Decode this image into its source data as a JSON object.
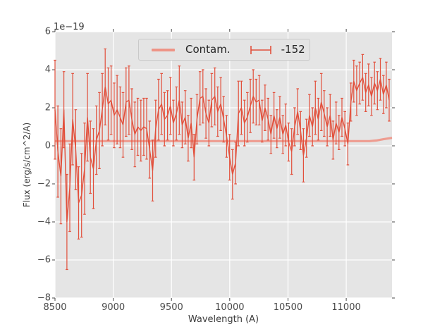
{
  "figure": {
    "background": "#ffffff",
    "plot_background": "#e5e5e5",
    "grid_color": "#ffffff",
    "tick_color": "#4a4a4a",
    "text_color": "#3c3c3c",
    "series_color": "#e2503c",
    "contam_color": "#ee9486",
    "legend_background": "#e4e4e4",
    "legend_border": "#c9c9c9"
  },
  "axes": {
    "xlabel": "Wavelength (A)",
    "ylabel": "Flux (erg/s/cm^2/A)",
    "offset_text": "1e−19",
    "xticks": [
      8500,
      9000,
      9500,
      10000,
      10500,
      11000
    ],
    "xtick_labels": [
      "8500",
      "9000",
      "9500",
      "10000",
      "10500",
      "11000"
    ],
    "yticks": [
      -8,
      -6,
      -4,
      -2,
      0,
      2,
      4,
      6
    ],
    "ytick_labels": [
      "−8",
      "−6",
      "−4",
      "−2",
      "0",
      "2",
      "4",
      "6"
    ]
  },
  "legend": {
    "entries": [
      {
        "label": "Contam.",
        "glyph": "line-swatch",
        "color": "#ee9486"
      },
      {
        "label": "-152",
        "glyph": "errorbar-icon",
        "color": "#e2503c"
      }
    ]
  },
  "chart_data": {
    "type": "line",
    "subtype": "errorbar-spectrum",
    "title": "",
    "xlabel": "Wavelength (A)",
    "ylabel": "Flux (erg/s/cm^2/A)",
    "y_scale_factor": "1e-19",
    "xlim": [
      8500,
      11393
    ],
    "ylim": [
      -8,
      6
    ],
    "grid": true,
    "legend_position": "upper center",
    "series": [
      {
        "name": "Contam.",
        "type": "line",
        "color": "#ee9486",
        "line_width": 3.2,
        "x": [
          8500,
          11200,
          11260,
          11320,
          11393
        ],
        "y": [
          0.25,
          0.25,
          0.28,
          0.35,
          0.42
        ]
      },
      {
        "name": "-152",
        "type": "errorbar",
        "color": "#e2503c",
        "line_width": 1.4,
        "x": [
          8500,
          8525,
          8551,
          8576,
          8602,
          8627,
          8652,
          8678,
          8703,
          8728,
          8754,
          8779,
          8804,
          8830,
          8855,
          8881,
          8906,
          8931,
          8957,
          8982,
          9008,
          9033,
          9059,
          9084,
          9110,
          9135,
          9160,
          9186,
          9211,
          9237,
          9262,
          9287,
          9313,
          9338,
          9364,
          9389,
          9415,
          9440,
          9466,
          9491,
          9516,
          9542,
          9567,
          9592,
          9618,
          9643,
          9669,
          9694,
          9719,
          9745,
          9770,
          9796,
          9821,
          9846,
          9872,
          9897,
          9923,
          9948,
          9973,
          9999,
          10024,
          10050,
          10075,
          10100,
          10126,
          10151,
          10177,
          10202,
          10227,
          10253,
          10278,
          10303,
          10329,
          10354,
          10380,
          10405,
          10430,
          10456,
          10481,
          10506,
          10532,
          10557,
          10583,
          10608,
          10633,
          10659,
          10684,
          10710,
          10735,
          10760,
          10786,
          10811,
          10837,
          10862,
          10887,
          10913,
          10938,
          10963,
          10989,
          11014,
          11040,
          11065,
          11090,
          11116,
          11141,
          11167,
          11192,
          11217,
          11243,
          11268,
          11293,
          11319,
          11344,
          11369
        ],
        "y": [
          1.9,
          -0.3,
          -1.6,
          1.9,
          -4.0,
          -2.2,
          1.4,
          -0.2,
          -3.0,
          -2.6,
          -1.2,
          1.5,
          -0.6,
          -1.2,
          0.3,
          0.8,
          1.9,
          3.1,
          2.2,
          2.4,
          1.6,
          1.9,
          1.5,
          1.1,
          2.3,
          2.4,
          1.4,
          0.6,
          1.0,
          0.8,
          1.0,
          0.9,
          -0.2,
          -1.3,
          0.9,
          1.9,
          2.2,
          1.4,
          1.6,
          2.1,
          1.2,
          1.7,
          2.4,
          1.1,
          1.5,
          0.4,
          1.2,
          -0.6,
          1.4,
          2.5,
          2.6,
          1.7,
          1.2,
          2.4,
          2.6,
          1.8,
          2.2,
          1.4,
          0.5,
          -0.6,
          -1.5,
          -0.9,
          1.7,
          2.0,
          1.2,
          1.5,
          2.1,
          2.6,
          2.3,
          2.4,
          1.3,
          2.0,
          1.4,
          0.6,
          1.6,
          0.9,
          1.5,
          0.6,
          1.1,
          0.2,
          -0.3,
          1.0,
          1.8,
          0.8,
          -0.5,
          0.4,
          1.6,
          1.0,
          2.0,
          1.4,
          2.3,
          1.7,
          1.0,
          1.6,
          0.3,
          1.2,
          0.7,
          1.5,
          0.9,
          0.1,
          2.3,
          3.4,
          2.9,
          3.3,
          3.6,
          2.8,
          3.2,
          2.6,
          3.3,
          2.9,
          3.5,
          2.7,
          3.2,
          2.4
        ],
        "yerr": [
          2.6,
          2.4,
          2.5,
          2.0,
          2.5,
          2.3,
          2.4,
          2.1,
          1.9,
          2.2,
          2.4,
          2.3,
          1.9,
          2.1,
          1.8,
          2.0,
          1.9,
          2.0,
          1.9,
          1.8,
          1.7,
          1.8,
          1.6,
          1.7,
          1.8,
          1.8,
          1.6,
          1.7,
          1.5,
          1.6,
          1.5,
          1.6,
          1.5,
          1.6,
          1.5,
          1.6,
          1.6,
          1.4,
          1.3,
          1.5,
          1.2,
          1.4,
          1.8,
          1.2,
          1.4,
          1.2,
          1.3,
          1.2,
          1.3,
          1.4,
          1.4,
          1.3,
          1.2,
          1.4,
          1.5,
          1.3,
          1.4,
          1.2,
          1.1,
          1.2,
          1.3,
          1.1,
          1.7,
          1.4,
          1.2,
          1.3,
          1.4,
          1.4,
          1.2,
          1.3,
          1.1,
          1.2,
          1.1,
          1.0,
          1.2,
          1.0,
          1.1,
          1.0,
          1.1,
          1.0,
          1.2,
          1.0,
          1.2,
          1.0,
          1.4,
          1.0,
          1.1,
          1.0,
          1.4,
          1.1,
          1.5,
          1.2,
          1.0,
          1.1,
          1.0,
          1.1,
          0.9,
          1.0,
          0.9,
          1.1,
          1.0,
          1.1,
          1.3,
          1.1,
          1.2,
          1.0,
          1.1,
          1.0,
          1.1,
          1.0,
          1.1,
          1.0,
          1.2,
          1.1
        ]
      }
    ]
  }
}
